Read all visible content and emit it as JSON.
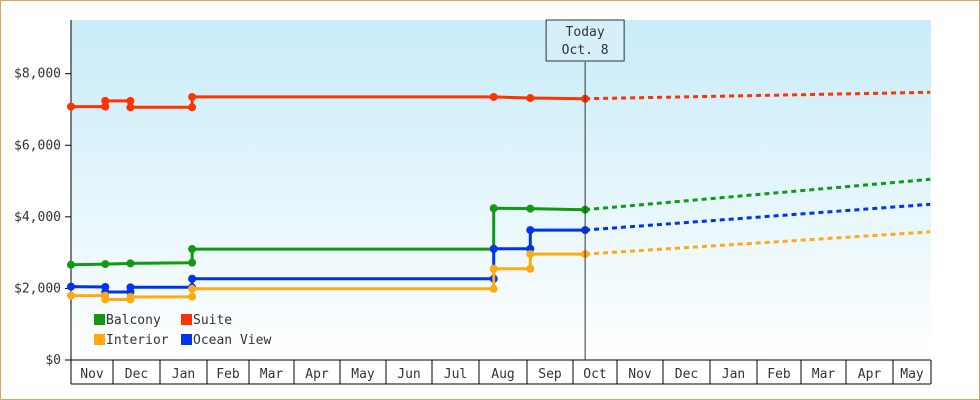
{
  "chart_data": {
    "type": "line",
    "title": "",
    "xlabel": "",
    "ylabel": "",
    "ylim": [
      0,
      9500
    ],
    "y_ticks": [
      {
        "value": 0,
        "label": "$0"
      },
      {
        "value": 2000,
        "label": "$2,000"
      },
      {
        "value": 4000,
        "label": "$4,000"
      },
      {
        "value": 6000,
        "label": "$6,000"
      },
      {
        "value": 8000,
        "label": "$8,000"
      }
    ],
    "x_tick_labels": [
      "Nov",
      "Dec",
      "Jan",
      "Feb",
      "Mar",
      "Apr",
      "May",
      "Jun",
      "Jul",
      "Aug",
      "Sep",
      "Oct",
      "Nov",
      "Dec",
      "Jan",
      "Feb",
      "Mar",
      "Apr",
      "May"
    ],
    "x_unit": "months since start of first Nov",
    "xlim": [
      0,
      18.8
    ],
    "today": {
      "line1": "Today",
      "line2": "Oct. 8",
      "x": 11.25
    },
    "background": {
      "plot_top": "#c8ecf8",
      "plot_bottom": "#ffffff"
    },
    "series": [
      {
        "name": "Suite",
        "color": "#ff3300",
        "points": [
          [
            0,
            7080
          ],
          [
            0.75,
            7080
          ],
          [
            0.75,
            7240
          ],
          [
            1.3,
            7240
          ],
          [
            1.3,
            7060
          ],
          [
            2.65,
            7060
          ],
          [
            2.65,
            7350
          ],
          [
            9.25,
            7350
          ],
          [
            10.05,
            7320
          ],
          [
            11.25,
            7300
          ]
        ],
        "projection": [
          [
            11.25,
            7300
          ],
          [
            18.8,
            7480
          ]
        ]
      },
      {
        "name": "Balcony",
        "color": "#119911",
        "points": [
          [
            0,
            2660
          ],
          [
            0.75,
            2680
          ],
          [
            1.3,
            2700
          ],
          [
            2.65,
            2720
          ],
          [
            2.65,
            3100
          ],
          [
            9.25,
            3100
          ],
          [
            9.25,
            4240
          ],
          [
            10.05,
            4230
          ],
          [
            11.25,
            4200
          ]
        ],
        "projection": [
          [
            11.25,
            4200
          ],
          [
            18.8,
            5050
          ]
        ]
      },
      {
        "name": "Ocean View",
        "color": "#0033ee",
        "points": [
          [
            0,
            2050
          ],
          [
            0.75,
            2040
          ],
          [
            0.75,
            1900
          ],
          [
            1.3,
            1900
          ],
          [
            1.3,
            2030
          ],
          [
            2.65,
            2030
          ],
          [
            2.65,
            2270
          ],
          [
            9.25,
            2270
          ],
          [
            9.25,
            3110
          ],
          [
            10.05,
            3110
          ],
          [
            10.05,
            3630
          ],
          [
            11.25,
            3630
          ]
        ],
        "projection": [
          [
            11.25,
            3630
          ],
          [
            18.8,
            4350
          ]
        ]
      },
      {
        "name": "Interior",
        "color": "#ffaa11",
        "points": [
          [
            0,
            1800
          ],
          [
            0.75,
            1800
          ],
          [
            0.75,
            1690
          ],
          [
            1.3,
            1690
          ],
          [
            1.3,
            1760
          ],
          [
            2.65,
            1770
          ],
          [
            2.65,
            1990
          ],
          [
            9.25,
            1990
          ],
          [
            9.25,
            2550
          ],
          [
            10.05,
            2550
          ],
          [
            10.05,
            2960
          ],
          [
            11.25,
            2960
          ]
        ],
        "projection": [
          [
            11.25,
            2960
          ],
          [
            18.8,
            3580
          ]
        ]
      }
    ],
    "markers": {
      "Suite": [
        [
          0,
          7080
        ],
        [
          0.75,
          7080
        ],
        [
          0.75,
          7240
        ],
        [
          1.3,
          7240
        ],
        [
          1.3,
          7060
        ],
        [
          2.65,
          7060
        ],
        [
          2.65,
          7350
        ],
        [
          9.25,
          7350
        ],
        [
          10.05,
          7320
        ],
        [
          11.25,
          7300
        ]
      ],
      "Balcony": [
        [
          0,
          2660
        ],
        [
          0.75,
          2680
        ],
        [
          1.3,
          2700
        ],
        [
          2.65,
          2720
        ],
        [
          2.65,
          3100
        ],
        [
          9.25,
          3100
        ],
        [
          9.25,
          4240
        ],
        [
          10.05,
          4230
        ],
        [
          11.25,
          4200
        ]
      ],
      "Ocean View": [
        [
          0,
          2050
        ],
        [
          0.75,
          2040
        ],
        [
          0.75,
          1900
        ],
        [
          1.3,
          1900
        ],
        [
          1.3,
          2030
        ],
        [
          2.65,
          2030
        ],
        [
          2.65,
          2270
        ],
        [
          9.25,
          2270
        ],
        [
          9.25,
          3110
        ],
        [
          10.05,
          3110
        ],
        [
          10.05,
          3630
        ],
        [
          11.25,
          3630
        ]
      ],
      "Interior": [
        [
          0,
          1800
        ],
        [
          0.75,
          1800
        ],
        [
          0.75,
          1690
        ],
        [
          1.3,
          1690
        ],
        [
          1.3,
          1760
        ],
        [
          2.65,
          1770
        ],
        [
          2.65,
          1990
        ],
        [
          9.25,
          1990
        ],
        [
          9.25,
          2550
        ],
        [
          10.05,
          2550
        ],
        [
          10.05,
          2960
        ],
        [
          11.25,
          2960
        ]
      ]
    },
    "legend": {
      "placement": "bottom-left",
      "columns": [
        [
          "Balcony",
          "Interior"
        ],
        [
          "Suite",
          "Ocean View"
        ]
      ]
    },
    "grid": false
  }
}
